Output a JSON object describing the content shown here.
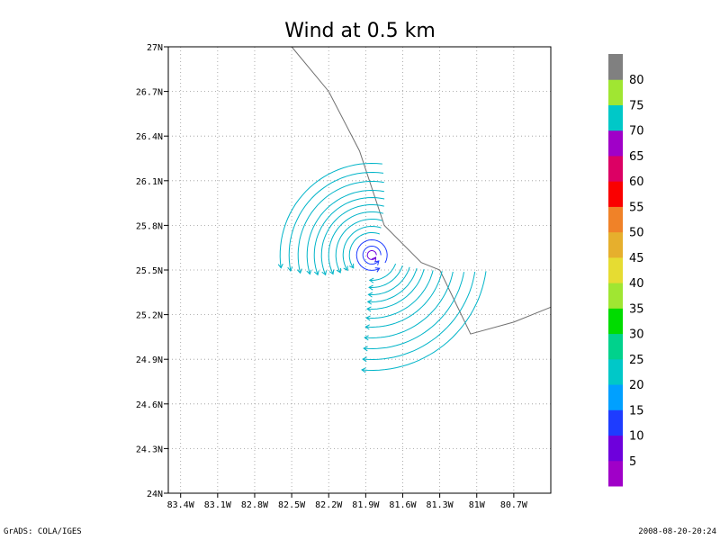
{
  "chart_data": {
    "type": "streamline",
    "title": "Wind at 0.5 km",
    "xlabel": "",
    "ylabel": "",
    "xlim": [
      -83.5,
      -80.4
    ],
    "ylim": [
      24.0,
      27.0
    ],
    "x_ticks": [
      -83.4,
      -83.1,
      -82.8,
      -82.5,
      -82.2,
      -81.9,
      -81.6,
      -81.3,
      -81.0,
      -80.7
    ],
    "x_tick_labels": [
      "83.4W",
      "83.1W",
      "82.8W",
      "82.5W",
      "82.2W",
      "81.9W",
      "81.6W",
      "81.3W",
      "81W",
      "80.7W"
    ],
    "y_ticks": [
      24.0,
      24.3,
      24.6,
      24.9,
      25.2,
      25.5,
      25.8,
      26.1,
      26.4,
      26.7,
      27.0
    ],
    "y_tick_labels": [
      "24N",
      "24.3N",
      "24.6N",
      "24.9N",
      "25.2N",
      "25.5N",
      "25.8N",
      "26.1N",
      "26.4N",
      "26.7N",
      "27N"
    ],
    "grid": true,
    "vortex_center": {
      "lon": -81.85,
      "lat": 25.6
    },
    "coastline": [
      [
        -82.5,
        27.0
      ],
      [
        -82.2,
        26.7
      ],
      [
        -81.95,
        26.3
      ],
      [
        -81.75,
        25.8
      ],
      [
        -81.45,
        25.55
      ],
      [
        -81.3,
        25.5
      ],
      [
        -81.05,
        25.07
      ],
      [
        -80.7,
        25.15
      ],
      [
        -80.4,
        25.25
      ]
    ],
    "colorbar": {
      "labels": [
        "5",
        "10",
        "15",
        "20",
        "25",
        "30",
        "35",
        "40",
        "45",
        "50",
        "55",
        "60",
        "65",
        "70",
        "75",
        "80"
      ],
      "colors": [
        "#a000c8",
        "#6e00dc",
        "#1e3cff",
        "#00a0ff",
        "#00c8c8",
        "#00d28c",
        "#00dc00",
        "#a0e632",
        "#e6dc32",
        "#e6af2d",
        "#f08228",
        "#fa0000",
        "#dc0064",
        "#a000c8",
        "#00c8c8",
        "#a0e632",
        "#808080"
      ]
    }
  },
  "footer": {
    "left": "GrADS: COLA/IGES",
    "right": "2008-08-20-20:24"
  }
}
